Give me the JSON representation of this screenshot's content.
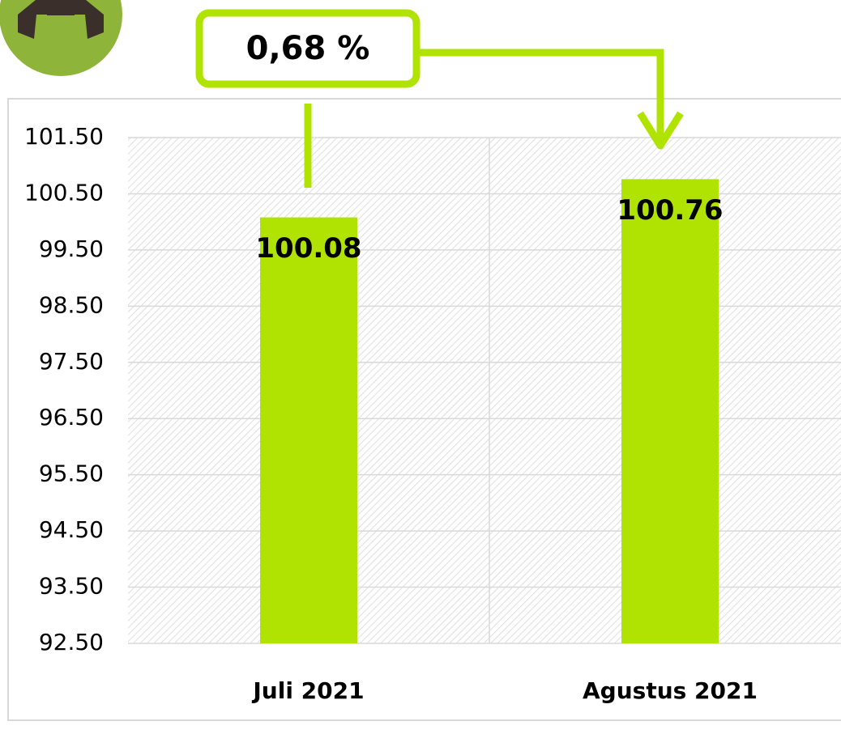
{
  "chart_data": {
    "type": "bar",
    "categories": [
      "Juli 2021",
      "Agustus 2021"
    ],
    "values": [
      100.08,
      100.76
    ],
    "color": "#b1e302",
    "ylim": [
      92.5,
      101.5
    ],
    "yticks": [
      {
        "value": 92.5,
        "label": "92.50"
      },
      {
        "value": 93.5,
        "label": "93.50"
      },
      {
        "value": 94.5,
        "label": "94.50"
      },
      {
        "value": 95.5,
        "label": "95.50"
      },
      {
        "value": 96.5,
        "label": "96.50"
      },
      {
        "value": 97.5,
        "label": "97.50"
      },
      {
        "value": 98.5,
        "label": "98.50"
      },
      {
        "value": 99.5,
        "label": "99.50"
      },
      {
        "value": 100.5,
        "label": "100.50"
      },
      {
        "value": 101.5,
        "label": "101.50"
      }
    ],
    "grid": true,
    "annotation": "0,68 %"
  }
}
